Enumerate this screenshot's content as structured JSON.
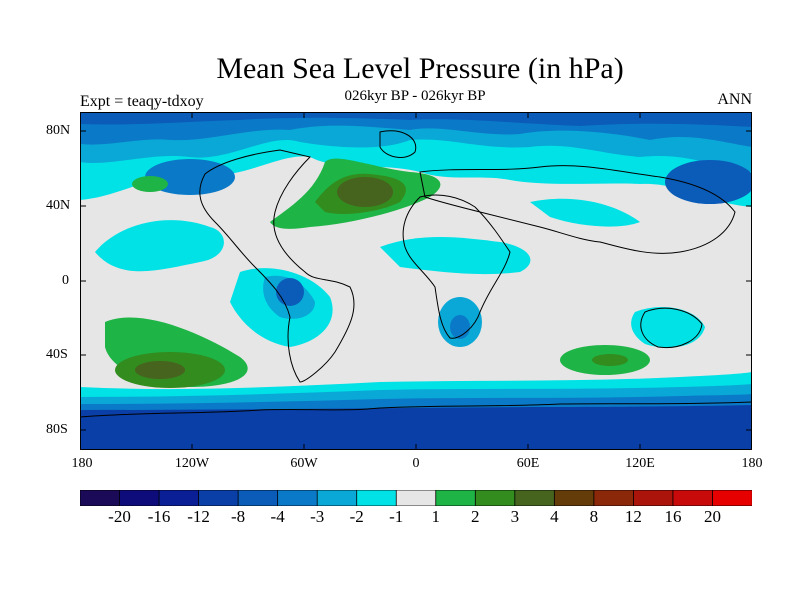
{
  "title": "Mean Sea Level Pressure (in hPa)",
  "subtitle": "026kyr BP - 026kyr BP",
  "left_label": "Expt = teaqy-tdxoy",
  "right_label": "ANN",
  "y_ticks": [
    "80N",
    "40N",
    "0",
    "40S",
    "80S"
  ],
  "x_ticks": [
    "180",
    "120W",
    "60W",
    "0",
    "60E",
    "120E",
    "180"
  ],
  "colorbar": {
    "labels": [
      "-20",
      "-16",
      "-12",
      "-8",
      "-4",
      "-3",
      "-2",
      "-1",
      "1",
      "2",
      "3",
      "4",
      "8",
      "12",
      "16",
      "20"
    ],
    "colors": [
      "#1a0a57",
      "#0d0c7a",
      "#0a1f96",
      "#0a3fa8",
      "#0a5cb8",
      "#0a7ac8",
      "#0aa8d6",
      "#00e2e6",
      "#e6e6e6",
      "#1eb446",
      "#328c1e",
      "#46641e",
      "#643c0a",
      "#8c280a",
      "#aa140a",
      "#c80a0a",
      "#e60000"
    ]
  },
  "colors": {
    "ocean_band": "#0a3fa8",
    "deep": "#0a5cb8",
    "mid": "#0a7ac8",
    "light": "#0aa8d6",
    "cyan": "#00e2e6",
    "neutral": "#e6e6e6",
    "green": "#1eb446",
    "dgreen": "#328c1e",
    "olive": "#46641e",
    "brown": "#643c0a"
  }
}
